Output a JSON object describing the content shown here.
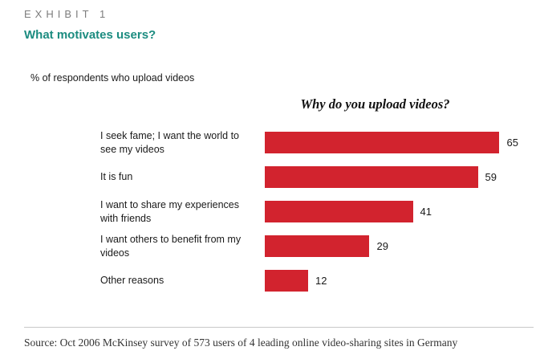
{
  "exhibit_label": "EXHIBIT 1",
  "title": "What motivates users?",
  "subtitle": "% of respondents who upload videos",
  "chart_data": {
    "type": "bar",
    "orientation": "horizontal",
    "title": "Why do you upload videos?",
    "categories": [
      "I seek fame; I want the world to see my videos",
      "It is fun",
      "I want to share my experiences with friends",
      "I want others to benefit from my videos",
      "Other reasons"
    ],
    "values": [
      65,
      59,
      41,
      29,
      12
    ],
    "xlim": [
      0,
      70
    ],
    "grid": false,
    "legend": "none",
    "bar_color": "#d2232e",
    "value_labels": true
  },
  "source": "Source: Oct 2006 McKinsey survey of 573 users of 4 leading online video-sharing sites in Germany",
  "colors": {
    "title_teal": "#1c8c80",
    "bar_red": "#d2232e",
    "exhibit_gray": "#7d7d7d"
  }
}
